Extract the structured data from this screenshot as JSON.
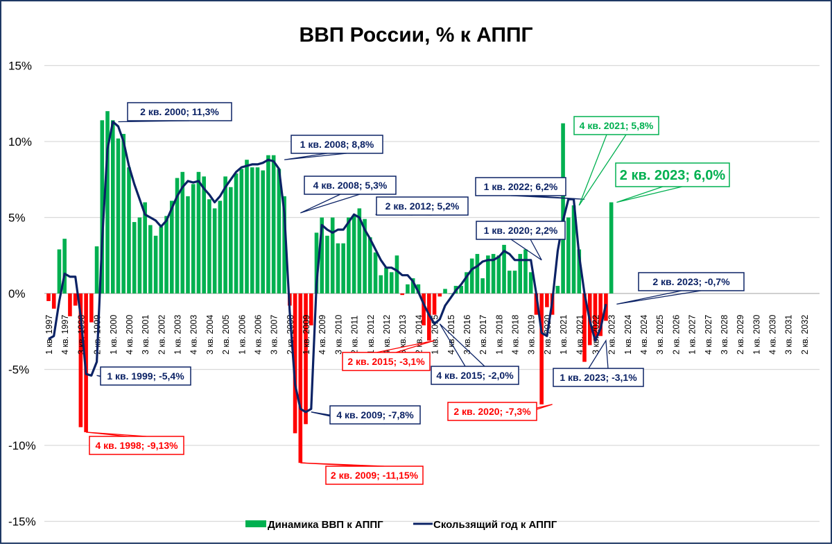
{
  "chart_data": {
    "type": "bar+line",
    "title": "ВВП России, % к АППГ",
    "xlabel": "",
    "ylabel": "",
    "ylim": [
      -15,
      15
    ],
    "yticks": [
      "15%",
      "10%",
      "5%",
      "0%",
      "-5%",
      "-10%",
      "-15%"
    ],
    "ytick_values": [
      15,
      10,
      5,
      0,
      -5,
      -10,
      -15
    ],
    "grid": true,
    "legend_position": "bottom",
    "colors": {
      "positive": "#00b050",
      "negative": "#ff0000",
      "line": "#0b2265",
      "grid": "#d9d9d9",
      "border": "#1f3864"
    },
    "x_start": "1 кв. 1997",
    "x_ticks": [
      "1 кв. 1997",
      "4 кв. 1997",
      "3 кв. 1998",
      "2 кв. 1999",
      "1 кв. 2000",
      "4 кв. 2000",
      "3 кв. 2001",
      "2 кв. 2002",
      "1 кв. 2003",
      "4 кв. 2003",
      "3 кв. 2004",
      "2 кв. 2005",
      "1 кв. 2006",
      "4 кв. 2006",
      "3 кв. 2007",
      "2 кв. 2008",
      "1 кв. 2009",
      "4 кв. 2009",
      "3 кв. 2010",
      "2 кв. 2011",
      "1 кв. 2012",
      "4 кв. 2012",
      "3 кв. 2013",
      "2 кв. 2014",
      "1 кв. 2015",
      "4 кв. 2015",
      "3 кв. 2016",
      "2 кв. 2017",
      "1 кв. 2018",
      "4 кв. 2018",
      "3 кв. 2019",
      "2 кв. 2020",
      "1 кв. 2021",
      "4 кв. 2021",
      "3 кв. 2022",
      "2 кв. 2023",
      "1 кв. 2024",
      "4 кв. 2024",
      "3 кв. 2025",
      "2 кв. 2026",
      "1 кв. 2027",
      "4 кв. 2027",
      "3 кв. 2028",
      "2 кв. 2029",
      "1 кв. 2030",
      "4 кв. 2030",
      "3 кв. 2031",
      "2 кв. 2032"
    ],
    "series": [
      {
        "name": "Динамика ВВП к АППГ",
        "type": "bar",
        "values": [
          -0.5,
          -1.0,
          2.9,
          3.6,
          -1.5,
          -0.8,
          -8.8,
          -9.13,
          -1.9,
          3.1,
          11.4,
          12.0,
          11.4,
          10.2,
          10.5,
          8.3,
          4.7,
          5.0,
          6.0,
          4.5,
          3.8,
          4.4,
          5.1,
          6.1,
          7.6,
          8.0,
          6.4,
          7.2,
          8.0,
          7.7,
          6.2,
          5.6,
          6.1,
          7.7,
          7.0,
          7.9,
          8.2,
          8.8,
          8.3,
          8.3,
          8.1,
          9.1,
          9.1,
          8.2,
          6.4,
          -0.8,
          -9.2,
          -11.15,
          -8.6,
          -2.1,
          4.0,
          5.0,
          3.8,
          5.0,
          3.3,
          3.3,
          5.0,
          5.1,
          5.6,
          4.9,
          3.7,
          2.7,
          1.2,
          1.7,
          1.4,
          2.5,
          -0.1,
          0.6,
          1.0,
          0.6,
          -2.1,
          -3.1,
          -1.4,
          -0.2,
          0.3,
          0.0,
          0.5,
          0.5,
          1.4,
          2.3,
          2.6,
          1.0,
          2.5,
          2.6,
          2.5,
          3.2,
          1.5,
          1.5,
          2.6,
          2.9,
          1.4,
          -1.4,
          -7.3,
          -0.9,
          -1.4,
          0.5,
          11.2,
          5.0,
          5.8,
          2.9,
          -4.5,
          -3.4,
          -3.1,
          -2.8,
          -1.8,
          6.0
        ]
      },
      {
        "name": "Скользящий год к АППГ",
        "type": "line",
        "values": [
          -3.0,
          -2.8,
          -0.5,
          1.3,
          1.1,
          1.1,
          -1.5,
          -5.3,
          -5.4,
          -4.5,
          3.5,
          9.5,
          11.3,
          11.0,
          10.0,
          8.4,
          7.2,
          6.2,
          5.2,
          5.0,
          4.8,
          4.4,
          4.8,
          5.6,
          6.4,
          7.0,
          7.4,
          7.3,
          7.4,
          6.9,
          6.5,
          6.0,
          6.4,
          7.0,
          7.5,
          8.0,
          8.3,
          8.4,
          8.5,
          8.5,
          8.6,
          8.8,
          8.7,
          8.2,
          5.3,
          -1.2,
          -6.0,
          -7.6,
          -7.8,
          -7.6,
          0.6,
          4.5,
          4.2,
          4.0,
          4.2,
          4.2,
          4.7,
          5.2,
          5.0,
          4.2,
          3.6,
          2.9,
          2.2,
          1.7,
          1.7,
          1.5,
          1.2,
          1.2,
          0.8,
          0.1,
          -0.7,
          -1.4,
          -2.0,
          -1.7,
          -0.8,
          -0.3,
          0.2,
          0.6,
          1.1,
          1.6,
          1.8,
          2.1,
          2.2,
          2.2,
          2.4,
          2.8,
          2.6,
          2.2,
          2.2,
          2.2,
          2.2,
          0.0,
          -2.6,
          -2.8,
          -0.5,
          2.8,
          4.8,
          6.2,
          6.2,
          2.5,
          0.0,
          -1.8,
          -3.1,
          -2.3,
          -0.7
        ]
      }
    ],
    "annotations": [
      {
        "label": "2 кв. 2000; 11,3%",
        "series": "line",
        "color": "#0b2265"
      },
      {
        "label": "1 кв. 2008; 8,8%",
        "series": "line",
        "color": "#0b2265"
      },
      {
        "label": "4 кв. 2008; 5,3%",
        "series": "line",
        "color": "#0b2265"
      },
      {
        "label": "2 кв. 2012; 5,2%",
        "series": "line",
        "color": "#0b2265"
      },
      {
        "label": "1 кв. 2020; 2,2%",
        "series": "line",
        "color": "#0b2265"
      },
      {
        "label": "1 кв. 2022; 6,2%",
        "series": "line",
        "color": "#0b2265"
      },
      {
        "label": "4 кв. 2021; 5,8%",
        "series": "line",
        "color": "#00b050"
      },
      {
        "label": "2 кв. 2023; 6,0%",
        "series": "bar",
        "color": "#00b050"
      },
      {
        "label": "2 кв. 2023; -0,7%",
        "series": "line",
        "color": "#0b2265"
      },
      {
        "label": "1 кв. 1999; -5,4%",
        "series": "line",
        "color": "#0b2265"
      },
      {
        "label": "4 кв. 1998; -9,13%",
        "series": "bar",
        "color": "#ff0000"
      },
      {
        "label": "4 кв. 2009; -7,8%",
        "series": "line",
        "color": "#0b2265"
      },
      {
        "label": "2 кв. 2009; -11,15%",
        "series": "bar",
        "color": "#ff0000"
      },
      {
        "label": "2 кв. 2015; -3,1%",
        "series": "bar",
        "color": "#ff0000"
      },
      {
        "label": "4 кв. 2015; -2,0%",
        "series": "line",
        "color": "#0b2265"
      },
      {
        "label": "2 кв. 2020; -7,3%",
        "series": "bar",
        "color": "#ff0000"
      },
      {
        "label": "1 кв. 2023; -3,1%",
        "series": "line",
        "color": "#0b2265"
      }
    ]
  },
  "legend": {
    "bar_label": "Динамика ВВП к АППГ",
    "line_label": "Скользящий год к АППГ"
  }
}
